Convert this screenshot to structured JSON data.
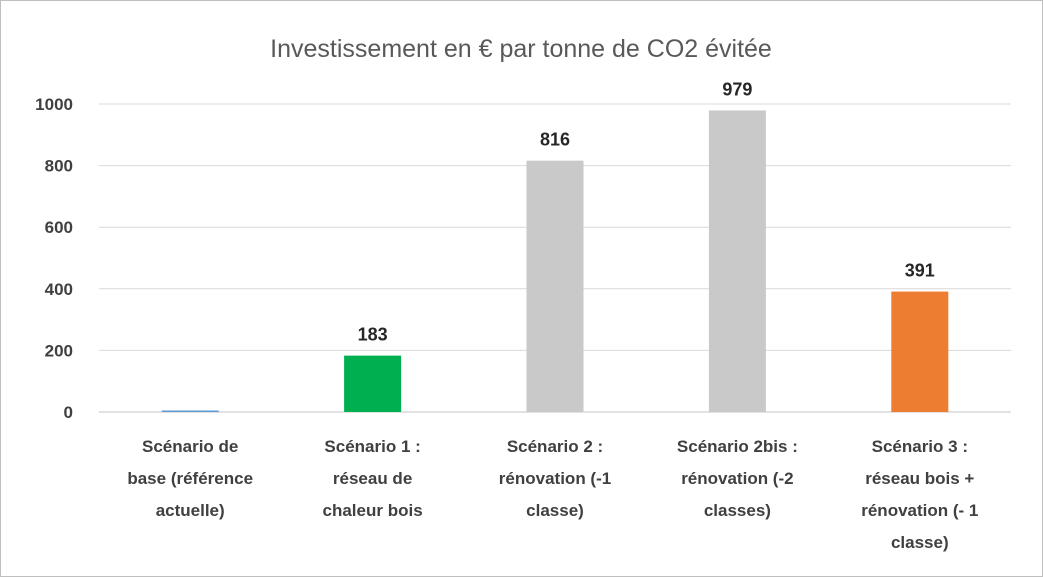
{
  "chart_data": {
    "type": "bar",
    "title": "Investissement en € par tonne de CO2 évitée",
    "xlabel": "",
    "ylabel": "",
    "ylim": [
      0,
      1000
    ],
    "yticks": [
      0,
      200,
      400,
      600,
      800,
      1000
    ],
    "grid": true,
    "legend": "none",
    "categories": [
      [
        "Scénario de",
        "base (référence",
        "actuelle)"
      ],
      [
        "Scénario 1 :",
        "réseau de",
        "chaleur bois"
      ],
      [
        "Scénario 2 :",
        "rénovation (-1",
        "classe)"
      ],
      [
        "Scénario 2bis :",
        "rénovation (-2",
        "classes)"
      ],
      [
        "Scénario 3 :",
        "réseau bois +",
        "rénovation (- 1",
        "classe)"
      ]
    ],
    "values": [
      0,
      183,
      816,
      979,
      391
    ],
    "data_labels": [
      "",
      "183",
      "816",
      "979",
      "391"
    ],
    "colors": [
      "#5b9bd5",
      "#00b050",
      "#c9c9c9",
      "#c9c9c9",
      "#ed7d31"
    ]
  }
}
